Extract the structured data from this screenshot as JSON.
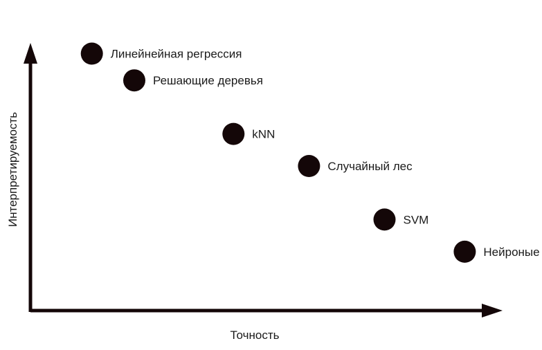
{
  "chart_data": {
    "type": "scatter",
    "xlabel": "Точность",
    "ylabel": "Интерпретируемость",
    "axis_ticks": false,
    "grid": false,
    "legend": "none",
    "point_color": "#140708",
    "axis_color": "#140708",
    "xlim": [
      0,
      10
    ],
    "ylim": [
      0,
      10
    ],
    "points": [
      {
        "label": "Линейнейная регрессия",
        "x": 1.3,
        "y": 9.6
      },
      {
        "label": "Решающие деревья",
        "x": 2.2,
        "y": 8.6
      },
      {
        "label": "kNN",
        "x": 4.3,
        "y": 6.6
      },
      {
        "label": "Случайный лес",
        "x": 5.9,
        "y": 5.4
      },
      {
        "label": "SVM",
        "x": 7.5,
        "y": 3.4
      },
      {
        "label": "Нейроные сети",
        "x": 9.2,
        "y": 2.2
      }
    ]
  }
}
